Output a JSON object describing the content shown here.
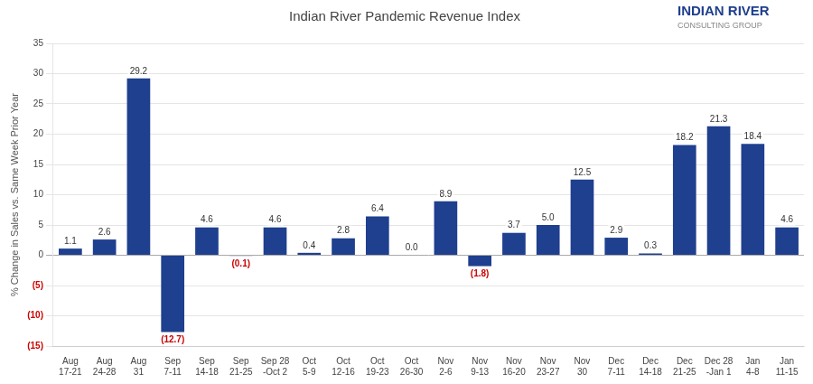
{
  "chart_data": {
    "type": "bar",
    "title": "Indian River Pandemic Revenue Index",
    "ylabel": "% Change in Sales vs. Same Week Prior Year",
    "annotations": [
      "INDIAN RIVER",
      "CONSULTING GROUP"
    ],
    "categories": [
      "Aug\n17-21",
      "Aug\n24-28",
      "Aug\n31",
      "Sep\n7-11",
      "Sep\n14-18",
      "Sep\n21-25",
      "Sep 28\n-Oct 2",
      "Oct\n5-9",
      "Oct\n12-16",
      "Oct\n19-23",
      "Oct\n26-30",
      "Nov\n2-6",
      "Nov\n9-13",
      "Nov\n16-20",
      "Nov\n23-27",
      "Nov\n30",
      "Dec\n7-11",
      "Dec\n14-18",
      "Dec\n21-25",
      "Dec 28\n-Jan 1",
      "Jan\n4-8",
      "Jan\n11-15"
    ],
    "values": [
      1.1,
      2.6,
      29.2,
      -12.7,
      4.6,
      -0.1,
      4.6,
      0.4,
      2.8,
      6.4,
      0.0,
      8.9,
      -1.8,
      3.7,
      5.0,
      12.5,
      2.9,
      0.3,
      18.2,
      21.3,
      18.4,
      4.6
    ],
    "value_labels": [
      "1.1",
      "2.6",
      "29.2",
      "(12.7)",
      "4.6",
      "(0.1)",
      "4.6",
      "0.4",
      "2.8",
      "6.4",
      "0.0",
      "8.9",
      "(1.8)",
      "3.7",
      "5.0",
      "12.5",
      "2.9",
      "0.3",
      "18.2",
      "21.3",
      "18.4",
      "4.6"
    ],
    "data_labels": true,
    "color": "#1f3f8f",
    "ylim": [
      -15,
      35
    ],
    "yticks": [
      {
        "value": -15,
        "label": "(15)"
      },
      {
        "value": -10,
        "label": "(10)"
      },
      {
        "value": -5,
        "label": "(5)"
      },
      0,
      5,
      10,
      15,
      20,
      25,
      30,
      35
    ],
    "grid": true
  }
}
